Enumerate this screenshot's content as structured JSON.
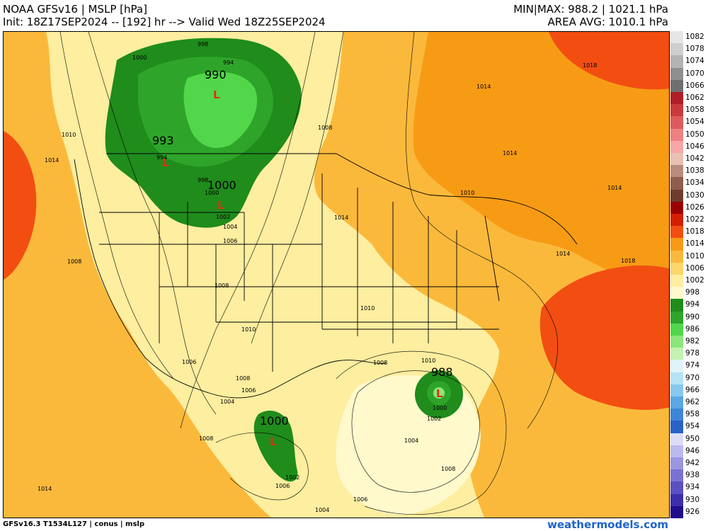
{
  "header": {
    "title": "NOAA GFSv16 | MSLP [hPa]",
    "init": "Init: 18Z17SEP2024 -- [192] hr --> Valid Wed 18Z25SEP2024",
    "minmax": "MIN|MAX: 988.2 | 1021.1 hPa",
    "area_avg": "AREA AVG: 1010.1 hPa"
  },
  "footer": {
    "model_info": "GFSv16.3 T1534L127 | conus | mslp",
    "site": "weathermodels.com"
  },
  "legend": {
    "levels": [
      {
        "label": "1082",
        "color": "#e6e6e6"
      },
      {
        "label": "1078",
        "color": "#cfcfcf"
      },
      {
        "label": "1074",
        "color": "#b3b3b3"
      },
      {
        "label": "1070",
        "color": "#8f8f8f"
      },
      {
        "label": "1066",
        "color": "#6f6f6f"
      },
      {
        "label": "1062",
        "color": "#b01f24"
      },
      {
        "label": "1058",
        "color": "#c93a3c"
      },
      {
        "label": "1054",
        "color": "#dd5b5b"
      },
      {
        "label": "1050",
        "color": "#ee8181"
      },
      {
        "label": "1046",
        "color": "#f8a6a6"
      },
      {
        "label": "1042",
        "color": "#e9c1b3"
      },
      {
        "label": "1038",
        "color": "#b78c7c"
      },
      {
        "label": "1034",
        "color": "#8f5d4e"
      },
      {
        "label": "1030",
        "color": "#6f3b2c"
      },
      {
        "label": "1026",
        "color": "#9b0000"
      },
      {
        "label": "1022",
        "color": "#d41e00"
      },
      {
        "label": "1018",
        "color": "#f24e12"
      },
      {
        "label": "1014",
        "color": "#f79b15"
      },
      {
        "label": "1010",
        "color": "#fbb93c"
      },
      {
        "label": "1006",
        "color": "#fcd66b"
      },
      {
        "label": "1002",
        "color": "#fdeea0"
      },
      {
        "label": "998",
        "color": "#fff9cc"
      },
      {
        "label": "994",
        "color": "#1f8c1b"
      },
      {
        "label": "990",
        "color": "#2ea52a"
      },
      {
        "label": "986",
        "color": "#52d74a"
      },
      {
        "label": "982",
        "color": "#8ae67a"
      },
      {
        "label": "978",
        "color": "#c3f2b0"
      },
      {
        "label": "974",
        "color": "#dff4f8"
      },
      {
        "label": "970",
        "color": "#b4e3f5"
      },
      {
        "label": "966",
        "color": "#86c8ee"
      },
      {
        "label": "962",
        "color": "#5aa7e3"
      },
      {
        "label": "958",
        "color": "#3d85d8"
      },
      {
        "label": "954",
        "color": "#2a62c8"
      },
      {
        "label": "950",
        "color": "#dcdcf7"
      },
      {
        "label": "946",
        "color": "#bcb9ee"
      },
      {
        "label": "942",
        "color": "#9c96e1"
      },
      {
        "label": "938",
        "color": "#7a72d3"
      },
      {
        "label": "934",
        "color": "#5b50c1"
      },
      {
        "label": "930",
        "color": "#3c2ea9"
      },
      {
        "label": "926",
        "color": "#1f0d8c"
      }
    ]
  },
  "map": {
    "contour_labels": [
      {
        "text": "998"
      },
      {
        "text": "994"
      },
      {
        "text": "1000"
      },
      {
        "text": "1010"
      },
      {
        "text": "1014"
      },
      {
        "text": "994"
      },
      {
        "text": "998"
      },
      {
        "text": "1000"
      },
      {
        "text": "1002"
      },
      {
        "text": "1004"
      },
      {
        "text": "1006"
      },
      {
        "text": "1008"
      },
      {
        "text": "1008"
      },
      {
        "text": "1008"
      },
      {
        "text": "1010"
      },
      {
        "text": "1014"
      },
      {
        "text": "1014"
      },
      {
        "text": "1014"
      },
      {
        "text": "1010"
      },
      {
        "text": "1014"
      },
      {
        "text": "1018"
      },
      {
        "text": "1018"
      },
      {
        "text": "1014"
      },
      {
        "text": "1010"
      },
      {
        "text": "1006"
      },
      {
        "text": "1008"
      },
      {
        "text": "1006"
      },
      {
        "text": "1004"
      },
      {
        "text": "1008"
      },
      {
        "text": "1002"
      },
      {
        "text": "1006"
      },
      {
        "text": "1004"
      },
      {
        "text": "1006"
      },
      {
        "text": "1014"
      },
      {
        "text": "1004"
      },
      {
        "text": "1002"
      },
      {
        "text": "1000"
      },
      {
        "text": "1008"
      },
      {
        "text": "1008"
      },
      {
        "text": "1010"
      }
    ],
    "lows": [
      {
        "value": "990",
        "mark": "L"
      },
      {
        "value": "993",
        "mark": "L"
      },
      {
        "value": "1000",
        "mark": "L"
      },
      {
        "value": "988",
        "mark": "L"
      },
      {
        "value": "1000",
        "mark": "L"
      }
    ],
    "colors": {
      "ocean_pacific": "#fbb93c",
      "ocean_atlantic": "#fcd66b",
      "land_light": "#fdeea0",
      "land_orange": "#f79b15",
      "high_red": "#f24e12",
      "green_dark": "#1f8c1b",
      "green_mid": "#2ea52a",
      "green_light": "#52d74a",
      "gulf_pale": "#fff9cc"
    }
  }
}
